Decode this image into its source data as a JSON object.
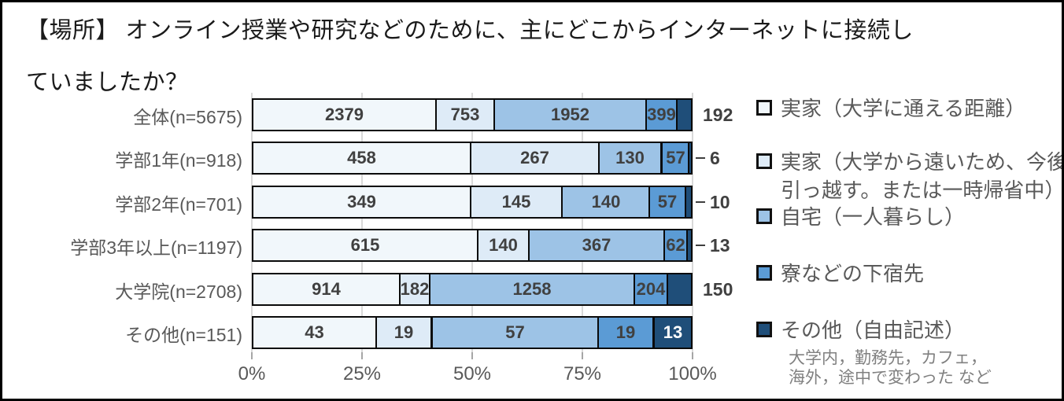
{
  "title": {
    "line1": "【場所】 オンライン授業や研究などのために、主にどこからインターネットに接続し",
    "line2": "ていましたか？"
  },
  "chart_data": {
    "type": "bar",
    "subtype": "stacked-100-horizontal",
    "title": "【場所】 オンライン授業や研究などのために、主にどこからインターネットに接続していましたか？",
    "categories": [
      "全体(n=5675)",
      "学部1年(n=918)",
      "学部2年(n=701)",
      "学部3年以上(n=1197)",
      "大学院(n=2708)",
      "その他(n=151)"
    ],
    "series": [
      {
        "name": "実家（大学に通える距離）",
        "color": "#f1f7fb",
        "values": [
          2379,
          458,
          349,
          615,
          914,
          43
        ]
      },
      {
        "name": "実家（大学から遠いため、今後引っ越す。または一時帰省中）",
        "color": "#deebf7",
        "values": [
          753,
          267,
          145,
          140,
          182,
          19
        ]
      },
      {
        "name": "自宅（一人暮らし）",
        "color": "#9dc3e6",
        "values": [
          1952,
          130,
          140,
          367,
          1258,
          57
        ]
      },
      {
        "name": "寮などの下宿先",
        "color": "#5b9bd5",
        "values": [
          399,
          57,
          57,
          62,
          204,
          19
        ]
      },
      {
        "name": "その他（自由記述）",
        "color": "#1f4e79",
        "values": [
          192,
          6,
          10,
          13,
          150,
          13
        ]
      }
    ],
    "x_ticks": [
      "0%",
      "25%",
      "50%",
      "75%",
      "100%"
    ],
    "xlim": [
      0,
      100
    ],
    "grid": true,
    "legend_position": "right"
  },
  "legend": {
    "items": [
      {
        "label": "実家（大学に通える距離）",
        "color": "#f1f7fb"
      },
      {
        "label": "実家（大学から遠いため、今後引っ越す。または一時帰省中）",
        "color": "#deebf7"
      },
      {
        "label": "自宅（一人暮らし）",
        "color": "#9dc3e6"
      },
      {
        "label": "寮などの下宿先",
        "color": "#5b9bd5"
      },
      {
        "label": "その他（自由記述）",
        "color": "#1f4e79"
      }
    ],
    "note_line1": "大学内，勤務先，カフェ，",
    "note_line2": "海外，途中で変わった など"
  },
  "colors": {
    "grid": "#d9d9d9",
    "bar_border": "#0a0a0a",
    "label_text": "#404040",
    "axis_text": "#595959"
  }
}
